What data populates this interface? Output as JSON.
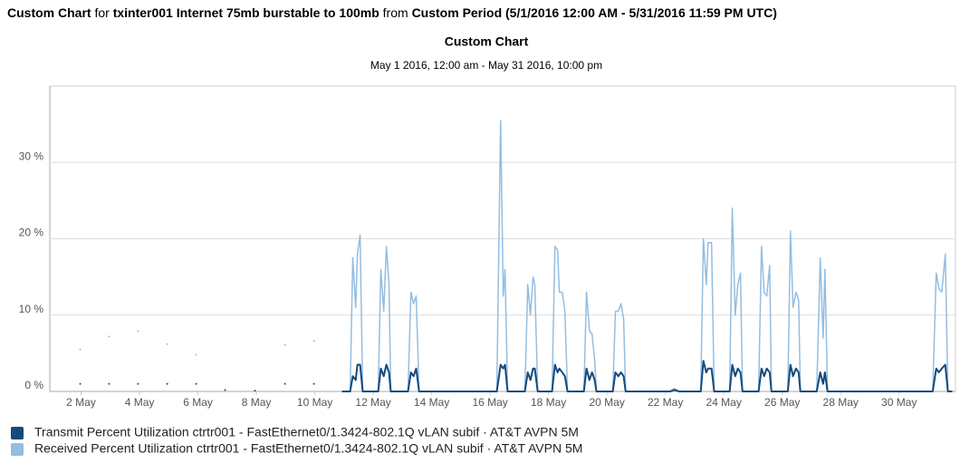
{
  "header": {
    "title": "Custom Chart",
    "for": "for",
    "device": "txinter001 Internet 75mb burstable to 100mb",
    "from": "from",
    "period": "Custom Period (5/1/2016 12:00 AM - 5/31/2016 11:59 PM UTC)"
  },
  "chart_data": {
    "type": "line",
    "title": "Custom Chart",
    "subtitle": "May 1 2016, 12:00 am - May 31 2016, 10:00 pm",
    "xlim": [
      0.93,
      31.93
    ],
    "ylim": [
      0,
      40
    ],
    "xticks": [
      {
        "value": 2,
        "label": "2 May"
      },
      {
        "value": 4,
        "label": "4 May"
      },
      {
        "value": 6,
        "label": "6 May"
      },
      {
        "value": 8,
        "label": "8 May"
      },
      {
        "value": 10,
        "label": "10 May"
      },
      {
        "value": 12,
        "label": "12 May"
      },
      {
        "value": 14,
        "label": "14 May"
      },
      {
        "value": 16,
        "label": "16 May"
      },
      {
        "value": 18,
        "label": "18 May"
      },
      {
        "value": 20,
        "label": "20 May"
      },
      {
        "value": 22,
        "label": "22 May"
      },
      {
        "value": 24,
        "label": "24 May"
      },
      {
        "value": 26,
        "label": "26 May"
      },
      {
        "value": 28,
        "label": "28 May"
      },
      {
        "value": 30,
        "label": "30 May"
      }
    ],
    "yticks": [
      {
        "value": 0,
        "label": "0 %"
      },
      {
        "value": 10,
        "label": "10 %"
      },
      {
        "value": 20,
        "label": "20 %"
      },
      {
        "value": 30,
        "label": "30 %"
      }
    ],
    "grid": true,
    "series": [
      {
        "name": "Transmit Percent Utilization ctrtr001 - FastEthernet0/1.3424-802.1Q vLAN subif · AT&T AVPN 5M",
        "color": "#154a7c",
        "x": [
          1.97,
          null,
          2.96,
          null,
          3.95,
          null,
          4.95,
          null,
          5.94,
          null,
          6.93,
          null,
          7.95,
          null,
          8.98,
          null,
          9.97,
          null,
          10.93,
          11.21,
          11.3,
          11.4,
          11.46,
          11.55,
          11.64,
          12.17,
          12.26,
          12.36,
          12.45,
          12.54,
          12.6,
          13.19,
          13.29,
          13.38,
          13.47,
          13.57,
          16.23,
          16.36,
          16.45,
          16.51,
          16.6,
          17.19,
          17.29,
          17.38,
          17.47,
          17.53,
          17.63,
          18.12,
          18.22,
          18.31,
          18.37,
          18.47,
          18.56,
          18.65,
          19.21,
          19.3,
          19.4,
          19.49,
          19.58,
          19.64,
          20.2,
          20.29,
          20.39,
          20.48,
          20.57,
          20.64,
          22.16,
          22.31,
          22.47,
          23.21,
          23.3,
          23.4,
          23.46,
          23.58,
          23.67,
          24.2,
          24.29,
          24.39,
          24.48,
          24.57,
          24.64,
          25.19,
          25.29,
          25.38,
          25.47,
          25.57,
          25.63,
          26.19,
          26.28,
          26.37,
          26.47,
          26.56,
          26.62,
          27.18,
          27.3,
          27.4,
          27.46,
          27.55,
          31.15,
          31.27,
          31.36,
          31.46,
          31.58,
          31.67,
          31.82
        ],
        "values": [
          1,
          null,
          1,
          null,
          1,
          null,
          1,
          null,
          1,
          null,
          0.2,
          null,
          0.1,
          null,
          1,
          null,
          1,
          null,
          0,
          0,
          2,
          1.5,
          3.5,
          3.5,
          0,
          0,
          3,
          2,
          3.5,
          2.5,
          0,
          0,
          2.5,
          2,
          3,
          0,
          0,
          3.5,
          3,
          3.5,
          0,
          0,
          2.5,
          1.5,
          3,
          3,
          0,
          0,
          3.5,
          2.5,
          3,
          2.5,
          2,
          0,
          0,
          3,
          1.5,
          2.5,
          1.5,
          0,
          0,
          2.5,
          2,
          2.5,
          2,
          0,
          0,
          0.2,
          0,
          0,
          4,
          2.5,
          3,
          3,
          0,
          0,
          3.5,
          2,
          3,
          2.5,
          0,
          0,
          3,
          2,
          3,
          2.5,
          0,
          0,
          3.5,
          2,
          3,
          2.5,
          0,
          0,
          2.5,
          1,
          2.5,
          0,
          0,
          3,
          2.5,
          3,
          3.5,
          0,
          0
        ]
      },
      {
        "name": "Received Percent Utilization ctrtr001 - FastEthernet0/1.3424-802.1Q vLAN subif · AT&T AVPN 5M",
        "color": "#94bde0",
        "x": [
          1.97,
          null,
          2.96,
          null,
          3.95,
          null,
          4.95,
          null,
          5.94,
          null,
          8.98,
          null,
          9.97,
          null,
          10.93,
          11.21,
          11.3,
          11.4,
          11.46,
          11.55,
          11.64,
          12.17,
          12.26,
          12.36,
          12.45,
          12.54,
          12.6,
          13.19,
          13.29,
          13.38,
          13.47,
          13.57,
          16.23,
          16.36,
          16.45,
          16.51,
          16.6,
          17.19,
          17.29,
          17.38,
          17.47,
          17.53,
          17.63,
          18.12,
          18.22,
          18.31,
          18.37,
          18.47,
          18.56,
          18.65,
          19.21,
          19.3,
          19.4,
          19.49,
          19.58,
          19.64,
          20.2,
          20.29,
          20.39,
          20.48,
          20.57,
          20.64,
          22.16,
          22.31,
          22.47,
          23.21,
          23.3,
          23.4,
          23.46,
          23.58,
          23.67,
          24.2,
          24.29,
          24.39,
          24.48,
          24.57,
          24.64,
          25.19,
          25.29,
          25.38,
          25.47,
          25.57,
          25.63,
          26.19,
          26.28,
          26.37,
          26.47,
          26.56,
          26.62,
          27.18,
          27.3,
          27.4,
          27.46,
          27.55,
          31.15,
          31.27,
          31.36,
          31.46,
          31.58,
          31.67,
          31.82
        ],
        "values": [
          5.5,
          null,
          7.2,
          null,
          7.9,
          null,
          6.2,
          null,
          4.8,
          null,
          6.1,
          null,
          6.6,
          null,
          0,
          0,
          17.5,
          11,
          18,
          20.5,
          0,
          0,
          16,
          10.5,
          19,
          14,
          0,
          0,
          13,
          11.5,
          12.5,
          0,
          0,
          35.5,
          12.5,
          16,
          0,
          0,
          14,
          10,
          15,
          14,
          0,
          0,
          19,
          18.5,
          13,
          13,
          10.5,
          0,
          0,
          13,
          8,
          7.5,
          4,
          0,
          0,
          10.5,
          10.5,
          11.5,
          9.5,
          0,
          0,
          0.4,
          0,
          0,
          20,
          14,
          19.5,
          19.5,
          0,
          0,
          24,
          10,
          14,
          15.5,
          0,
          0,
          19,
          13,
          12.5,
          16.5,
          0,
          0,
          21,
          11,
          13,
          12,
          0,
          0,
          17.5,
          7,
          16,
          0,
          0,
          15.5,
          13.5,
          13,
          18,
          0,
          0
        ]
      }
    ]
  }
}
